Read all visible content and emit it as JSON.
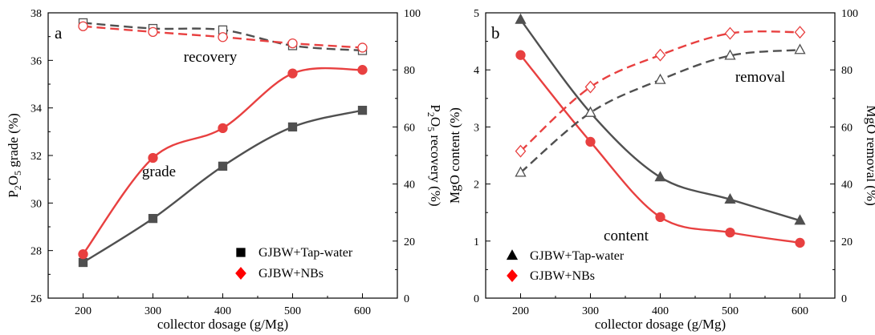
{
  "chart_data": [
    {
      "type": "line",
      "panel_label": "a",
      "x_label": "collector dosage (g/Mg)",
      "y_label_parts": [
        "P",
        "2",
        "O",
        "5",
        " grade (%)"
      ],
      "y2_label_parts": [
        "P",
        "2",
        "O",
        "5",
        " recovery (%)"
      ],
      "x": [
        200,
        300,
        400,
        500,
        600
      ],
      "xlim": [
        150,
        650
      ],
      "x_ticks": [
        200,
        300,
        400,
        500,
        600
      ],
      "ylim": [
        26,
        38
      ],
      "y_ticks": [
        26,
        28,
        30,
        32,
        34,
        36,
        38
      ],
      "y2lim": [
        0,
        100
      ],
      "y2_ticks": [
        0,
        20,
        40,
        60,
        80,
        100
      ],
      "annotations": [
        "recovery",
        "grade"
      ],
      "legend_placement": "bottom-right",
      "legend": [
        {
          "label": "GJBW+Tap-water",
          "marker": "square",
          "color": "#000000"
        },
        {
          "label": "GJBW+NBs",
          "marker": "diamond",
          "color": "#ff0000"
        }
      ],
      "series": [
        {
          "name": "GJBW+Tap-water",
          "metric": "grade",
          "axis": "left",
          "color": "#505050",
          "marker": "square",
          "filled": true,
          "dashed": false,
          "values": [
            27.5,
            29.35,
            31.55,
            33.2,
            33.9
          ]
        },
        {
          "name": "GJBW+NBs",
          "metric": "grade",
          "axis": "left",
          "color": "#e84040",
          "marker": "circle",
          "filled": true,
          "dashed": false,
          "values": [
            27.85,
            31.9,
            33.15,
            35.45,
            35.6
          ]
        },
        {
          "name": "GJBW+Tap-water",
          "metric": "recovery",
          "axis": "right",
          "color": "#505050",
          "marker": "square",
          "filled": false,
          "dashed": true,
          "values": [
            96.5,
            94.5,
            94.0,
            88.5,
            86.8
          ]
        },
        {
          "name": "GJBW+NBs",
          "metric": "recovery",
          "axis": "right",
          "color": "#e84040",
          "marker": "circle",
          "filled": false,
          "dashed": true,
          "values": [
            95.3,
            93.3,
            91.5,
            89.3,
            87.8
          ]
        }
      ]
    },
    {
      "type": "line",
      "panel_label": "b",
      "x_label": "collector dosage (g/Mg)",
      "y_label_parts": [
        "MgO content (%)"
      ],
      "y2_label_parts": [
        "MgO removal (%)"
      ],
      "x": [
        200,
        300,
        400,
        500,
        600
      ],
      "xlim": [
        150,
        650
      ],
      "x_ticks": [
        200,
        300,
        400,
        500,
        600
      ],
      "ylim": [
        0,
        5
      ],
      "y_ticks": [
        0,
        1,
        2,
        3,
        4,
        5
      ],
      "y2lim": [
        0,
        100
      ],
      "y2_ticks": [
        0,
        20,
        40,
        60,
        80,
        100
      ],
      "annotations": [
        "removal",
        "content"
      ],
      "legend_placement": "bottom-left",
      "legend": [
        {
          "label": "GJBW+Tap-water",
          "marker": "triangle",
          "color": "#000000"
        },
        {
          "label": "GJBW+NBs",
          "marker": "diamond",
          "color": "#ff0000"
        }
      ],
      "series": [
        {
          "name": "GJBW+Tap-water",
          "metric": "content",
          "axis": "left",
          "color": "#505050",
          "marker": "triangle",
          "filled": true,
          "dashed": false,
          "values": [
            4.88,
            3.25,
            2.12,
            1.73,
            1.36
          ]
        },
        {
          "name": "GJBW+NBs",
          "metric": "content",
          "axis": "left",
          "color": "#e84040",
          "marker": "circle",
          "filled": true,
          "dashed": false,
          "values": [
            4.26,
            2.74,
            1.42,
            1.15,
            0.97
          ]
        },
        {
          "name": "GJBW+Tap-water",
          "metric": "removal",
          "axis": "right",
          "color": "#505050",
          "marker": "triangle",
          "filled": false,
          "dashed": true,
          "values": [
            44,
            65,
            76.5,
            85,
            87
          ]
        },
        {
          "name": "GJBW+NBs",
          "metric": "removal",
          "axis": "right",
          "color": "#e84040",
          "marker": "diamond",
          "filled": false,
          "dashed": true,
          "values": [
            51.5,
            74,
            85.2,
            92.8,
            93.2
          ]
        }
      ]
    }
  ]
}
